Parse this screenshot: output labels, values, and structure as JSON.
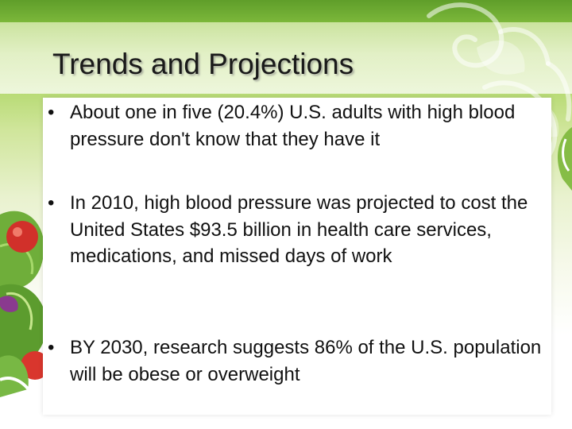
{
  "slide": {
    "title": "Trends and Projections",
    "bullet_symbol": "•",
    "bullets": [
      "About one in five (20.4%) U.S. adults with high blood pressure don't know that they have it",
      "In 2010, high blood pressure was projected to cost the United States $93.5 billion in health care services, medications, and missed days of work",
      "BY 2030, research suggests 86% of the U.S. population will be obese or overweight"
    ]
  },
  "theme": {
    "accent_green": "#7cb73a",
    "text_color": "#111111",
    "icons": [
      "leaf-swirl-decoration",
      "salad-image"
    ]
  }
}
